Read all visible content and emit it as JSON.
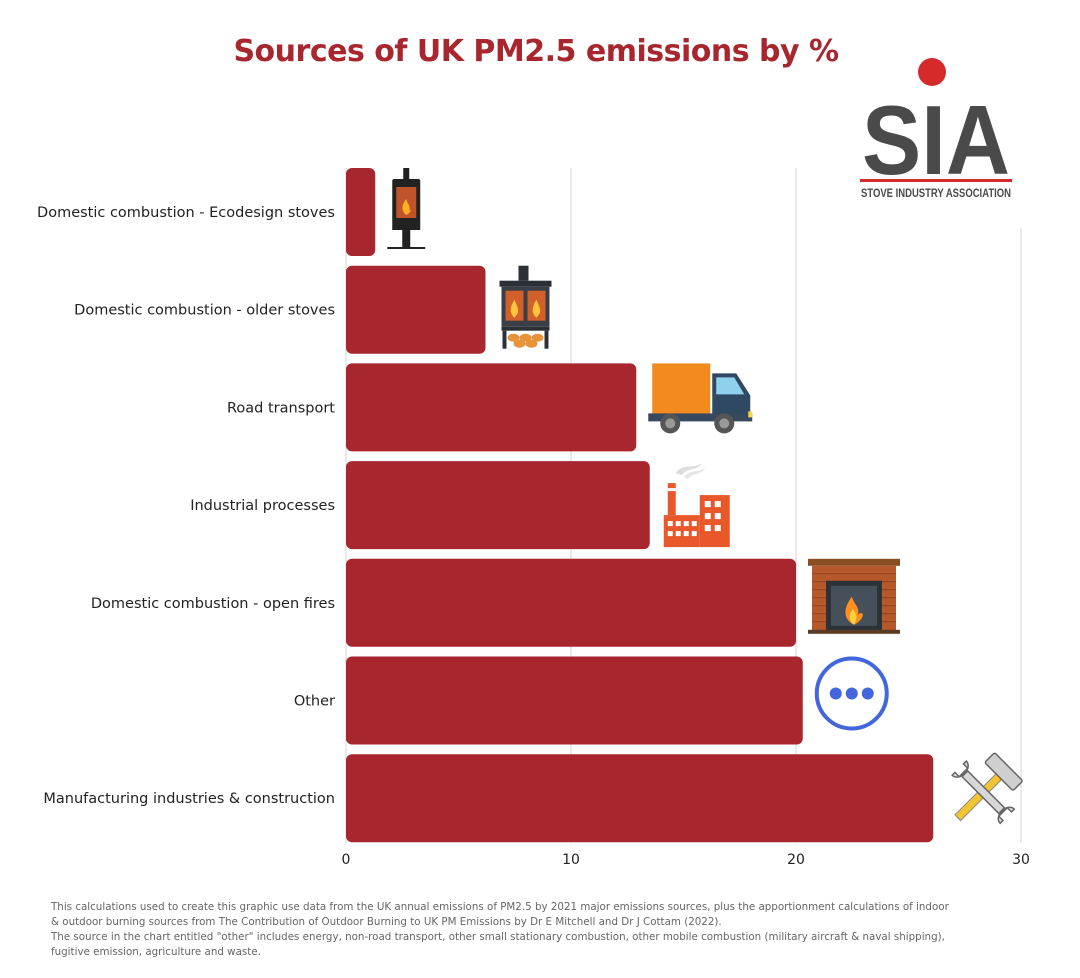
{
  "chart_data": {
    "type": "bar",
    "orientation": "horizontal",
    "title": "Sources of UK PM2.5 emissions by %",
    "categories": [
      "Domestic combustion - Ecodesign stoves",
      "Domestic combustion - older stoves",
      "Road transport",
      "Industrial processes",
      "Domestic combustion - open fires",
      "Other",
      "Manufacturing industries & construction"
    ],
    "values": [
      1.3,
      6.2,
      12.9,
      13.5,
      20.0,
      20.3,
      26.1
    ],
    "icons": [
      "ecodesign-stove-icon",
      "older-stove-icon",
      "truck-icon",
      "factory-icon",
      "fireplace-icon",
      "ellipsis-icon",
      "tools-icon"
    ],
    "xticks": [
      0,
      10,
      20,
      30
    ],
    "xlim": [
      0,
      30
    ],
    "grid": true,
    "bar_color": "#a8262e",
    "xlabel": "",
    "ylabel": ""
  },
  "logo": {
    "letters": "SIA",
    "tagline": "STOVE INDUSTRY ASSOCIATION",
    "dot_color": "#d42a2a",
    "text_color": "#4a4a4a"
  },
  "footnote": {
    "line1": "This calculations used to create this graphic use data from the UK annual emissions of PM2.5 by 2021 major emissions sources, plus the apportionment calculations of indoor & outdoor burning sources from The Contribution of Outdoor Burning to UK PM Emissions by Dr E Mitchell and Dr J Cottam (2022).",
    "line2": "The source in the chart entitled \"other\" includes energy, non-road transport, other small stationary combustion, other mobile combustion (military aircraft & naval shipping), fugitive emission, agriculture and waste."
  }
}
